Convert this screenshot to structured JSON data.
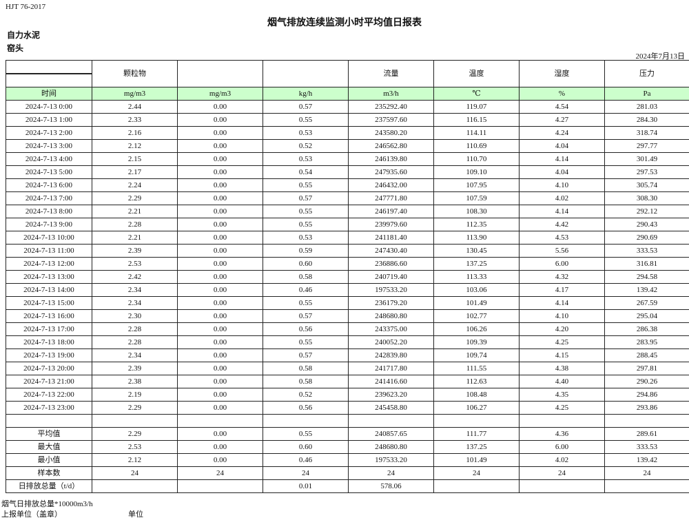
{
  "header": {
    "standard": "HJT  76-2017",
    "title": "烟气排放连续监测小时平均值日报表",
    "company": "自力水泥",
    "unit": "窑头",
    "date": "2024年7月13日"
  },
  "table": {
    "column_headers": [
      "",
      "颗粒物",
      "",
      "",
      "流量",
      "温度",
      "湿度",
      "压力"
    ],
    "units": [
      "时间",
      "mg/m3",
      "mg/m3",
      "kg/h",
      "m3/h",
      "℃",
      "%",
      "Pa"
    ],
    "rows": [
      [
        "2024-7-13 0:00",
        "2.44",
        "0.00",
        "0.57",
        "235292.40",
        "119.07",
        "4.54",
        "281.03"
      ],
      [
        "2024-7-13 1:00",
        "2.33",
        "0.00",
        "0.55",
        "237597.60",
        "116.15",
        "4.27",
        "284.30"
      ],
      [
        "2024-7-13 2:00",
        "2.16",
        "0.00",
        "0.53",
        "243580.20",
        "114.11",
        "4.24",
        "318.74"
      ],
      [
        "2024-7-13 3:00",
        "2.12",
        "0.00",
        "0.52",
        "246562.80",
        "110.69",
        "4.04",
        "297.77"
      ],
      [
        "2024-7-13 4:00",
        "2.15",
        "0.00",
        "0.53",
        "246139.80",
        "110.70",
        "4.14",
        "301.49"
      ],
      [
        "2024-7-13 5:00",
        "2.17",
        "0.00",
        "0.54",
        "247935.60",
        "109.10",
        "4.04",
        "297.53"
      ],
      [
        "2024-7-13 6:00",
        "2.24",
        "0.00",
        "0.55",
        "246432.00",
        "107.95",
        "4.10",
        "305.74"
      ],
      [
        "2024-7-13 7:00",
        "2.29",
        "0.00",
        "0.57",
        "247771.80",
        "107.59",
        "4.02",
        "308.30"
      ],
      [
        "2024-7-13 8:00",
        "2.21",
        "0.00",
        "0.55",
        "246197.40",
        "108.30",
        "4.14",
        "292.12"
      ],
      [
        "2024-7-13 9:00",
        "2.28",
        "0.00",
        "0.55",
        "239979.60",
        "112.35",
        "4.42",
        "290.43"
      ],
      [
        "2024-7-13 10:00",
        "2.21",
        "0.00",
        "0.53",
        "241181.40",
        "113.90",
        "4.53",
        "290.69"
      ],
      [
        "2024-7-13 11:00",
        "2.39",
        "0.00",
        "0.59",
        "247430.40",
        "130.45",
        "5.56",
        "333.53"
      ],
      [
        "2024-7-13 12:00",
        "2.53",
        "0.00",
        "0.60",
        "236886.60",
        "137.25",
        "6.00",
        "316.81"
      ],
      [
        "2024-7-13 13:00",
        "2.42",
        "0.00",
        "0.58",
        "240719.40",
        "113.33",
        "4.32",
        "294.58"
      ],
      [
        "2024-7-13 14:00",
        "2.34",
        "0.00",
        "0.46",
        "197533.20",
        "103.06",
        "4.17",
        "139.42"
      ],
      [
        "2024-7-13 15:00",
        "2.34",
        "0.00",
        "0.55",
        "236179.20",
        "101.49",
        "4.14",
        "267.59"
      ],
      [
        "2024-7-13 16:00",
        "2.30",
        "0.00",
        "0.57",
        "248680.80",
        "102.77",
        "4.10",
        "295.04"
      ],
      [
        "2024-7-13 17:00",
        "2.28",
        "0.00",
        "0.56",
        "243375.00",
        "106.26",
        "4.20",
        "286.38"
      ],
      [
        "2024-7-13 18:00",
        "2.28",
        "0.00",
        "0.55",
        "240052.20",
        "109.39",
        "4.25",
        "283.95"
      ],
      [
        "2024-7-13 19:00",
        "2.34",
        "0.00",
        "0.57",
        "242839.80",
        "109.74",
        "4.15",
        "288.45"
      ],
      [
        "2024-7-13 20:00",
        "2.39",
        "0.00",
        "0.58",
        "241717.80",
        "111.55",
        "4.38",
        "297.81"
      ],
      [
        "2024-7-13 21:00",
        "2.38",
        "0.00",
        "0.58",
        "241416.60",
        "112.63",
        "4.40",
        "290.26"
      ],
      [
        "2024-7-13 22:00",
        "2.19",
        "0.00",
        "0.52",
        "239623.20",
        "108.48",
        "4.35",
        "294.86"
      ],
      [
        "2024-7-13 23:00",
        "2.29",
        "0.00",
        "0.56",
        "245458.80",
        "106.27",
        "4.25",
        "293.86"
      ]
    ],
    "summary": [
      [
        "平均值",
        "2.29",
        "0.00",
        "0.55",
        "240857.65",
        "111.77",
        "4.36",
        "289.61"
      ],
      [
        "最大值",
        "2.53",
        "0.00",
        "0.60",
        "248680.80",
        "137.25",
        "6.00",
        "333.53"
      ],
      [
        "最小值",
        "2.12",
        "0.00",
        "0.46",
        "197533.20",
        "101.49",
        "4.02",
        "139.42"
      ],
      [
        "样本数",
        "24",
        "24",
        "24",
        "24",
        "24",
        "24",
        "24"
      ],
      [
        "日排放总量（t/d）",
        "",
        "",
        "0.01",
        "578.06",
        "",
        "",
        ""
      ]
    ]
  },
  "footer": {
    "note": "烟气日排放总量*10000m3/h",
    "reporter_label": "上报单位（盖章）",
    "unit_label": "单位"
  }
}
